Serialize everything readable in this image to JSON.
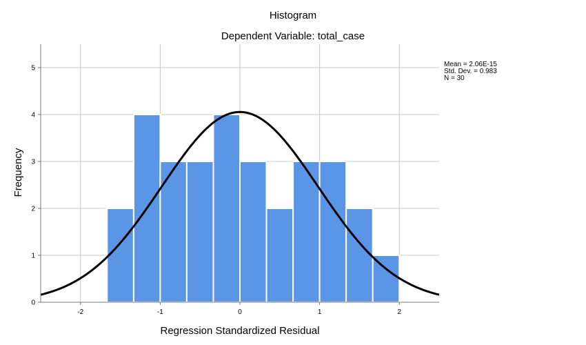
{
  "chart_data": {
    "type": "bar",
    "title": "Histogram",
    "subtitle": "Dependent Variable: total_case",
    "xlabel": "Regression Standardized Residual",
    "ylabel": "Frequency",
    "xlim": [
      -2.5,
      2.5
    ],
    "ylim": [
      0,
      5.5
    ],
    "x_ticks": [
      "-2",
      "-1",
      "0",
      "1",
      "2"
    ],
    "x_tick_values": [
      -2,
      -1,
      0,
      1,
      2
    ],
    "y_ticks": [
      "0",
      "1",
      "2",
      "3",
      "4",
      "5"
    ],
    "y_tick_values": [
      0,
      1,
      2,
      3,
      4,
      5
    ],
    "grid": true,
    "bin_width": 0.333,
    "bins": [
      {
        "start": -1.667,
        "end": -1.333,
        "value": 2
      },
      {
        "start": -1.333,
        "end": -1.0,
        "value": 4
      },
      {
        "start": -1.0,
        "end": -0.667,
        "value": 3
      },
      {
        "start": -0.667,
        "end": -0.333,
        "value": 3
      },
      {
        "start": -0.333,
        "end": 0.0,
        "value": 4
      },
      {
        "start": 0.0,
        "end": 0.333,
        "value": 3
      },
      {
        "start": 0.333,
        "end": 0.667,
        "value": 2
      },
      {
        "start": 0.667,
        "end": 1.0,
        "value": 3
      },
      {
        "start": 1.0,
        "end": 1.333,
        "value": 3
      },
      {
        "start": 1.333,
        "end": 1.667,
        "value": 2
      },
      {
        "start": 1.667,
        "end": 2.0,
        "value": 1
      }
    ],
    "normal_curve": {
      "mean": 0,
      "sd": 0.983,
      "n": 30
    },
    "stats_lines": [
      "Mean = 2.06E-15",
      "Std. Dev. = 0.983",
      "N = 30"
    ],
    "colors": {
      "bar": "#5b96e6",
      "bar_edge": "#ffffff",
      "curve": "#000000",
      "grid": "#c8c8c8",
      "axis": "#777777"
    }
  }
}
